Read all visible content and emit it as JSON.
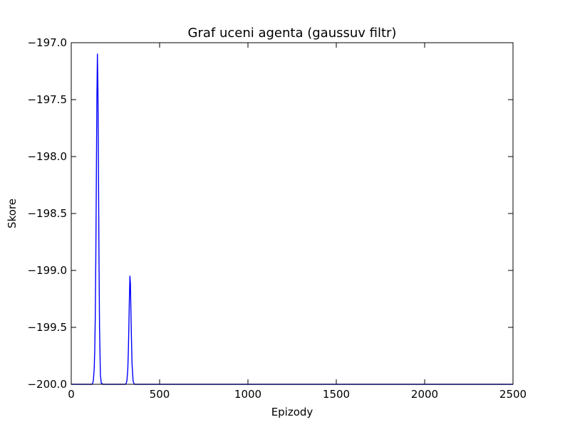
{
  "chart_data": {
    "type": "line",
    "title": "Graf uceni agenta (gaussuv filtr)",
    "xlabel": "Epizody",
    "ylabel": "Skore",
    "xlim": [
      0,
      2500
    ],
    "ylim": [
      -200.0,
      -197.0
    ],
    "xticks": [
      0,
      500,
      1000,
      1500,
      2000,
      2500
    ],
    "xtick_labels": [
      "0",
      "500",
      "1000",
      "1500",
      "2000",
      "2500"
    ],
    "yticks": [
      -197.0,
      -197.5,
      -198.0,
      -198.5,
      -199.0,
      -199.5,
      -200.0
    ],
    "ytick_labels": [
      "−197.0",
      "−197.5",
      "−198.0",
      "−198.5",
      "−199.0",
      "−199.5",
      "−200.0"
    ],
    "grid": false,
    "legend": "none",
    "series": [
      {
        "color": "#0000ff",
        "x": [
          0,
          100,
          110,
          115,
          120,
          125,
          130,
          133,
          136,
          139,
          142,
          145,
          148,
          151,
          154,
          157,
          160,
          165,
          170,
          180,
          200,
          250,
          300,
          305,
          310,
          315,
          320,
          323,
          326,
          329,
          332,
          335,
          338,
          341,
          344,
          350,
          355,
          360,
          380,
          500,
          1000,
          1500,
          2000,
          2500
        ],
        "y": [
          -200.0,
          -200.0,
          -200.0,
          -200.0,
          -199.995,
          -199.97,
          -199.86,
          -199.7,
          -199.4,
          -198.9,
          -198.2,
          -197.5,
          -197.1,
          -197.4,
          -198.1,
          -198.9,
          -199.5,
          -199.92,
          -199.99,
          -200.0,
          -200.0,
          -200.0,
          -200.0,
          -200.0,
          -199.995,
          -199.97,
          -199.87,
          -199.72,
          -199.5,
          -199.25,
          -199.05,
          -199.12,
          -199.38,
          -199.62,
          -199.82,
          -199.97,
          -199.995,
          -200.0,
          -200.0,
          -200.0,
          -200.0,
          -200.0,
          -200.0,
          -200.0
        ]
      }
    ]
  }
}
